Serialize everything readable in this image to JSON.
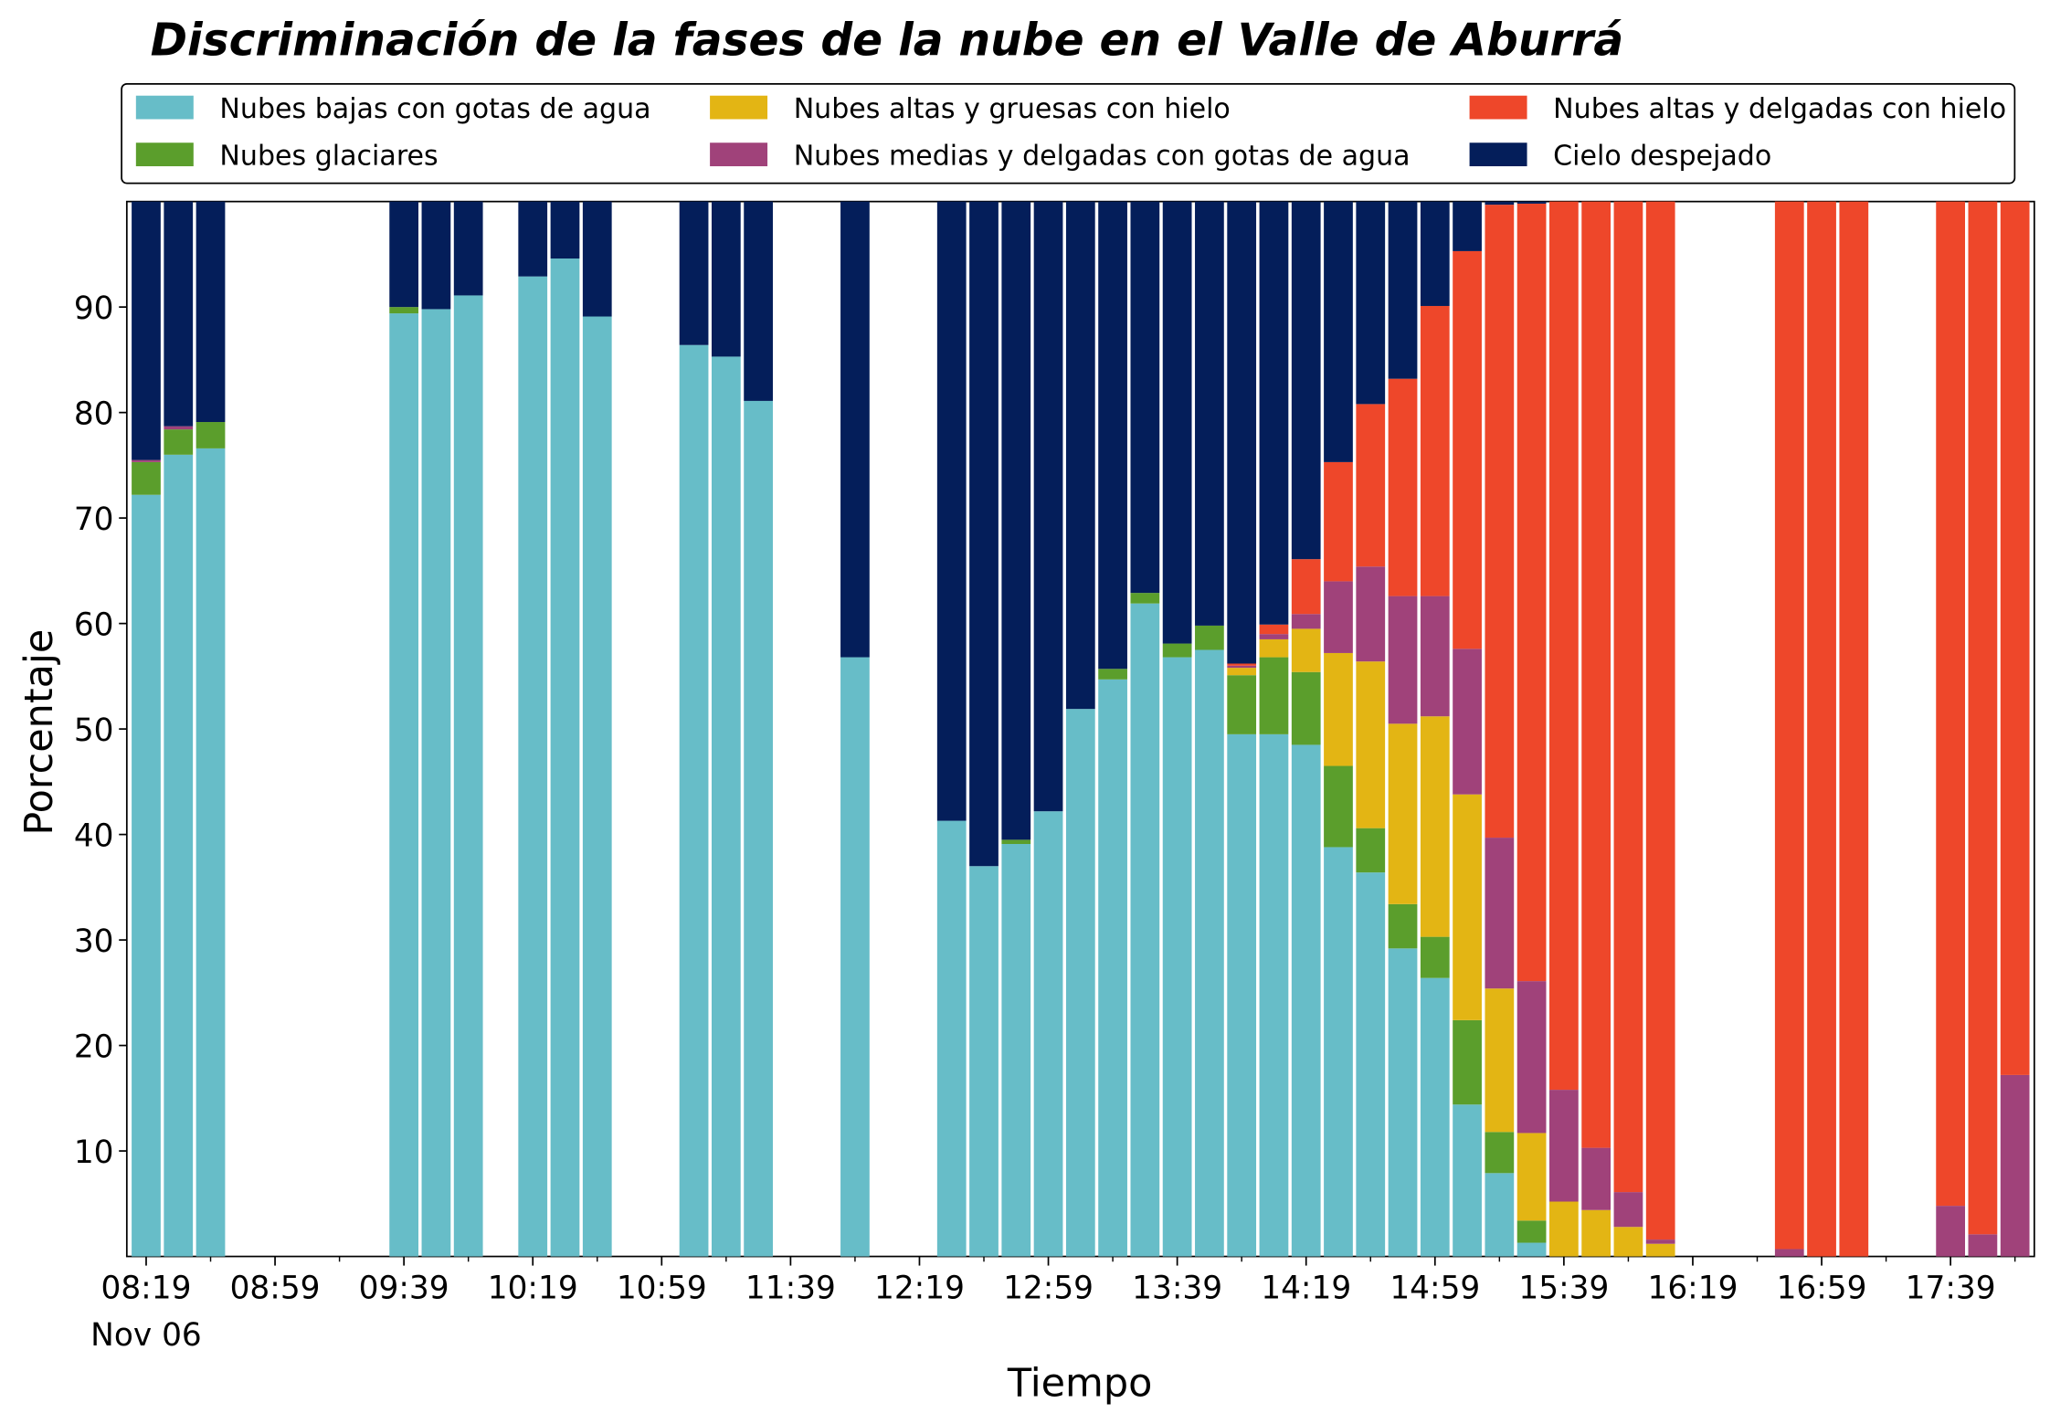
{
  "chart_data": {
    "type": "stacked_bar",
    "title": "Discriminación de la fases de la nube en el Valle de Aburrá",
    "xlabel": "Tiempo",
    "ylabel": "Porcentaje",
    "date_label": "Nov 06",
    "x": [
      "08:19",
      "08:29",
      "08:39",
      "09:39",
      "09:49",
      "09:59",
      "10:19",
      "10:29",
      "10:39",
      "11:09",
      "11:19",
      "11:29",
      "11:59",
      "12:29",
      "12:39",
      "12:49",
      "12:59",
      "13:09",
      "13:19",
      "13:29",
      "13:39",
      "13:49",
      "13:59",
      "14:09",
      "14:19",
      "14:29",
      "14:39",
      "14:49",
      "14:59",
      "15:09",
      "15:19",
      "15:29",
      "15:39",
      "15:49",
      "15:59",
      "16:09",
      "16:49",
      "16:59",
      "17:09",
      "17:39",
      "17:49",
      "17:59"
    ],
    "series": [
      {
        "name": "Nubes bajas con gotas de agua",
        "color": "#67bdc8",
        "values": [
          72.2,
          76.0,
          76.6,
          89.4,
          89.8,
          91.1,
          92.9,
          94.6,
          89.1,
          86.4,
          85.3,
          81.1,
          56.8,
          41.3,
          37.0,
          39.1,
          42.2,
          51.9,
          54.7,
          61.9,
          56.8,
          57.5,
          49.5,
          49.5,
          48.5,
          38.8,
          36.4,
          29.2,
          26.4,
          14.4,
          7.9,
          1.3,
          0,
          0,
          0,
          0,
          0,
          0,
          0,
          0,
          0,
          0
        ]
      },
      {
        "name": "Nubes glaciares",
        "color": "#5b9e2c",
        "values": [
          3.1,
          2.4,
          2.5,
          0.6,
          0,
          0,
          0,
          0,
          0,
          0,
          0,
          0,
          0,
          0,
          0,
          0.4,
          0,
          0,
          1.0,
          1.0,
          1.3,
          2.3,
          5.6,
          7.3,
          6.9,
          7.7,
          4.2,
          4.2,
          3.9,
          8.0,
          3.9,
          2.1,
          0,
          0,
          0,
          0,
          0,
          0,
          0,
          0,
          0,
          0
        ]
      },
      {
        "name": "Nubes altas y gruesas con hielo",
        "color": "#e3b514",
        "values": [
          0,
          0,
          0,
          0,
          0,
          0,
          0,
          0,
          0,
          0,
          0,
          0,
          0,
          0,
          0,
          0,
          0,
          0,
          0,
          0,
          0,
          0,
          0.7,
          1.7,
          4.1,
          10.7,
          15.8,
          17.1,
          20.9,
          21.4,
          13.6,
          8.3,
          5.2,
          4.4,
          2.8,
          1.2,
          0,
          0,
          0,
          0,
          0,
          0
        ]
      },
      {
        "name": "Nubes medias y delgadas con gotas de agua",
        "color": "#a0427a",
        "values": [
          0.2,
          0.3,
          0,
          0,
          0,
          0,
          0,
          0,
          0,
          0,
          0,
          0,
          0,
          0,
          0,
          0,
          0,
          0,
          0,
          0,
          0,
          0,
          0.2,
          0.5,
          1.4,
          6.8,
          9.0,
          12.1,
          11.4,
          13.8,
          14.3,
          14.4,
          10.6,
          5.9,
          3.3,
          0.4,
          0.7,
          0,
          0,
          4.8,
          2.1,
          17.2
        ]
      },
      {
        "name": "Nubes altas y delgadas con hielo",
        "color": "#ee472a",
        "values": [
          0,
          0,
          0,
          0,
          0,
          0,
          0,
          0,
          0,
          0,
          0,
          0,
          0,
          0,
          0,
          0,
          0,
          0,
          0,
          0,
          0,
          0,
          0.2,
          0.9,
          5.2,
          11.3,
          15.4,
          20.6,
          27.5,
          37.7,
          60.0,
          73.7,
          84.2,
          89.7,
          93.9,
          98.4,
          99.3,
          100,
          100,
          95.2,
          97.9,
          82.8
        ]
      },
      {
        "name": "Cielo despejado",
        "color": "#041e5a",
        "values": [
          24.5,
          21.3,
          20.9,
          10.0,
          10.2,
          8.9,
          7.1,
          5.4,
          10.9,
          13.6,
          14.7,
          18.9,
          43.2,
          58.7,
          63.0,
          60.5,
          57.8,
          48.1,
          44.3,
          37.1,
          41.9,
          40.2,
          43.8,
          40.1,
          33.9,
          24.7,
          19.2,
          16.8,
          9.9,
          4.7,
          0.3,
          0.2,
          0,
          0,
          0,
          0,
          0,
          0,
          0,
          0,
          0,
          0
        ]
      }
    ],
    "xlim": [
      "08:13",
      "18:05"
    ],
    "xticks": [
      "08:19",
      "08:59",
      "09:39",
      "10:19",
      "10:59",
      "11:39",
      "12:19",
      "12:59",
      "13:39",
      "14:19",
      "14:59",
      "15:39",
      "16:19",
      "16:59",
      "17:39"
    ],
    "xminorticks": [
      "08:39",
      "09:19",
      "09:59",
      "10:39",
      "11:19",
      "11:59",
      "12:39",
      "13:19",
      "13:59",
      "14:39",
      "15:19",
      "15:59",
      "16:39",
      "17:19",
      "17:59"
    ],
    "ylim": [
      0,
      100
    ],
    "yticks": [
      10,
      20,
      30,
      40,
      50,
      60,
      70,
      80,
      90
    ],
    "legend": "top"
  }
}
